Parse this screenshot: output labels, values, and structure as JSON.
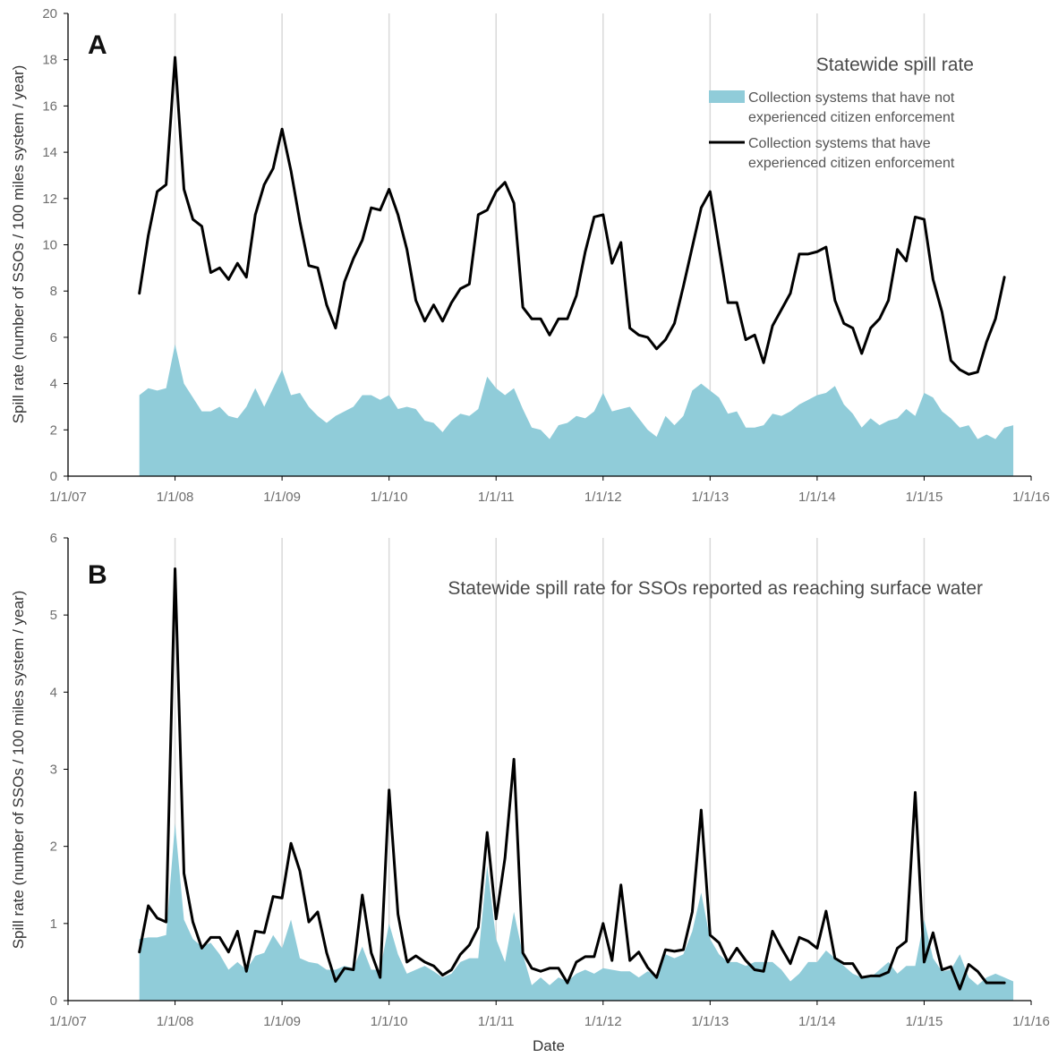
{
  "figure": {
    "ylabel": "Spill rate (number of SSOs / 100 miles system / year)",
    "xlabel": "Date",
    "colors": {
      "area": "#90ccd9",
      "line": "#000000",
      "grid": "#d9d9d9",
      "axis": "#000000"
    }
  },
  "chart_data": [
    {
      "type": "area",
      "panel_label": "A",
      "title": "Statewide spill rate",
      "ylabel": "Spill rate (number of SSOs / 100 miles system / year)",
      "xlabel": "",
      "x_ticks": [
        "1/1/07",
        "1/1/08",
        "1/1/09",
        "1/1/10",
        "1/1/11",
        "1/1/12",
        "1/1/13",
        "1/1/14",
        "1/1/15",
        "1/1/16"
      ],
      "y_ticks": [
        "0",
        "2",
        "4",
        "6",
        "8",
        "10",
        "12",
        "14",
        "16",
        "18",
        "20"
      ],
      "ylim": [
        0,
        20
      ],
      "xlim": [
        "2007-01-01",
        "2016-01-01"
      ],
      "x_start": "2007-09",
      "x_interval": "monthly",
      "grid": "vertical lines at each year",
      "legend_position": "top-right",
      "series": [
        {
          "name": "Collection systems that have not experienced citizen enforcement",
          "type": "area",
          "color": "#90ccd9",
          "values": [
            3.5,
            3.8,
            3.7,
            3.8,
            5.7,
            4.0,
            3.4,
            2.8,
            2.8,
            3.0,
            2.6,
            2.5,
            3.0,
            3.8,
            3.0,
            3.8,
            4.6,
            3.5,
            3.6,
            3.0,
            2.6,
            2.3,
            2.6,
            2.8,
            3.0,
            3.5,
            3.5,
            3.3,
            3.5,
            2.9,
            3.0,
            2.9,
            2.4,
            2.3,
            1.9,
            2.4,
            2.7,
            2.6,
            2.9,
            4.3,
            3.8,
            3.5,
            3.8,
            2.9,
            2.1,
            2.0,
            1.6,
            2.2,
            2.3,
            2.6,
            2.5,
            2.8,
            3.6,
            2.8,
            2.9,
            3.0,
            2.5,
            2.0,
            1.7,
            2.6,
            2.2,
            2.6,
            3.7,
            4.0,
            3.7,
            3.4,
            2.7,
            2.8,
            2.1,
            2.1,
            2.2,
            2.7,
            2.6,
            2.8,
            3.1,
            3.3,
            3.5,
            3.6,
            3.9,
            3.1,
            2.7,
            2.1,
            2.5,
            2.2,
            2.4,
            2.5,
            2.9,
            2.6,
            3.6,
            3.4,
            2.8,
            2.5,
            2.1,
            2.2,
            1.6,
            1.8,
            1.6,
            2.1,
            2.2
          ]
        },
        {
          "name": "Collection systems that have experienced citizen enforcement",
          "type": "line",
          "color": "#000000",
          "values": [
            7.9,
            10.4,
            12.3,
            12.6,
            18.1,
            12.4,
            11.1,
            10.8,
            8.8,
            9.0,
            8.5,
            9.2,
            8.6,
            11.3,
            12.6,
            13.3,
            15.0,
            13.2,
            11.0,
            9.1,
            9.0,
            7.4,
            6.4,
            8.4,
            9.4,
            10.2,
            11.6,
            11.5,
            12.4,
            11.3,
            9.8,
            7.6,
            6.7,
            7.4,
            6.7,
            7.5,
            8.1,
            8.3,
            11.3,
            11.5,
            12.3,
            12.7,
            11.8,
            7.3,
            6.8,
            6.8,
            6.1,
            6.8,
            6.8,
            7.8,
            9.7,
            11.2,
            11.3,
            9.2,
            10.1,
            6.4,
            6.1,
            6.0,
            5.5,
            5.9,
            6.6,
            8.2,
            9.9,
            11.6,
            12.3,
            9.9,
            7.5,
            7.5,
            5.9,
            6.1,
            4.9,
            6.5,
            7.2,
            7.9,
            9.6,
            9.6,
            9.7,
            9.9,
            7.6,
            6.6,
            6.4,
            5.3,
            6.4,
            6.8,
            7.6,
            9.8,
            9.3,
            11.2,
            11.1,
            8.5,
            7.1,
            5.0,
            4.6,
            4.4,
            4.5,
            5.8,
            6.8,
            8.6
          ]
        }
      ]
    },
    {
      "type": "area",
      "panel_label": "B",
      "title": "Statewide spill rate for SSOs reported as reaching surface water",
      "ylabel": "Spill rate (number of SSOs / 100 miles system / year)",
      "xlabel": "Date",
      "x_ticks": [
        "1/1/07",
        "1/1/08",
        "1/1/09",
        "1/1/10",
        "1/1/11",
        "1/1/12",
        "1/1/13",
        "1/1/14",
        "1/1/15",
        "1/1/16"
      ],
      "y_ticks": [
        "0",
        "1",
        "2",
        "3",
        "4",
        "5",
        "6"
      ],
      "ylim": [
        0,
        6
      ],
      "xlim": [
        "2007-01-01",
        "2016-01-01"
      ],
      "x_start": "2007-09",
      "x_interval": "monthly",
      "grid": "vertical lines at each year",
      "series": [
        {
          "name": "Collection systems that have not experienced citizen enforcement",
          "type": "area",
          "color": "#90ccd9",
          "values": [
            0.8,
            0.82,
            0.82,
            0.85,
            2.3,
            1.05,
            0.8,
            0.7,
            0.75,
            0.6,
            0.4,
            0.5,
            0.4,
            0.58,
            0.62,
            0.85,
            0.68,
            1.05,
            0.55,
            0.5,
            0.48,
            0.4,
            0.4,
            0.45,
            0.42,
            0.7,
            0.4,
            0.4,
            1.0,
            0.6,
            0.35,
            0.4,
            0.45,
            0.38,
            0.3,
            0.35,
            0.5,
            0.55,
            0.55,
            1.75,
            0.8,
            0.5,
            1.15,
            0.6,
            0.2,
            0.3,
            0.2,
            0.3,
            0.25,
            0.35,
            0.4,
            0.35,
            0.42,
            0.4,
            0.38,
            0.38,
            0.3,
            0.38,
            0.32,
            0.6,
            0.55,
            0.6,
            0.9,
            1.4,
            0.8,
            0.6,
            0.5,
            0.5,
            0.45,
            0.5,
            0.5,
            0.5,
            0.4,
            0.25,
            0.35,
            0.5,
            0.5,
            0.65,
            0.55,
            0.45,
            0.35,
            0.3,
            0.3,
            0.4,
            0.5,
            0.35,
            0.45,
            0.45,
            1.05,
            0.55,
            0.38,
            0.4,
            0.6,
            0.3,
            0.2,
            0.3,
            0.35,
            0.3,
            0.25
          ]
        },
        {
          "name": "Collection systems that have experienced citizen enforcement",
          "type": "line",
          "color": "#000000",
          "values": [
            0.63,
            1.23,
            1.07,
            1.02,
            5.6,
            1.65,
            1.02,
            0.68,
            0.82,
            0.82,
            0.63,
            0.9,
            0.38,
            0.9,
            0.88,
            1.35,
            1.33,
            2.04,
            1.68,
            1.02,
            1.15,
            0.62,
            0.25,
            0.42,
            0.4,
            1.37,
            0.62,
            0.3,
            2.73,
            1.12,
            0.5,
            0.58,
            0.5,
            0.45,
            0.33,
            0.4,
            0.6,
            0.72,
            0.95,
            2.18,
            1.06,
            1.85,
            3.13,
            0.62,
            0.42,
            0.38,
            0.42,
            0.42,
            0.23,
            0.5,
            0.57,
            0.57,
            1.0,
            0.52,
            1.5,
            0.52,
            0.63,
            0.43,
            0.3,
            0.66,
            0.64,
            0.66,
            1.15,
            2.47,
            0.85,
            0.75,
            0.5,
            0.68,
            0.52,
            0.4,
            0.38,
            0.9,
            0.68,
            0.48,
            0.82,
            0.77,
            0.68,
            1.16,
            0.55,
            0.48,
            0.48,
            0.3,
            0.32,
            0.32,
            0.37,
            0.68,
            0.77,
            2.7,
            0.5,
            0.88,
            0.4,
            0.44,
            0.15,
            0.47,
            0.38,
            0.23,
            0.23,
            0.23
          ]
        }
      ]
    }
  ]
}
